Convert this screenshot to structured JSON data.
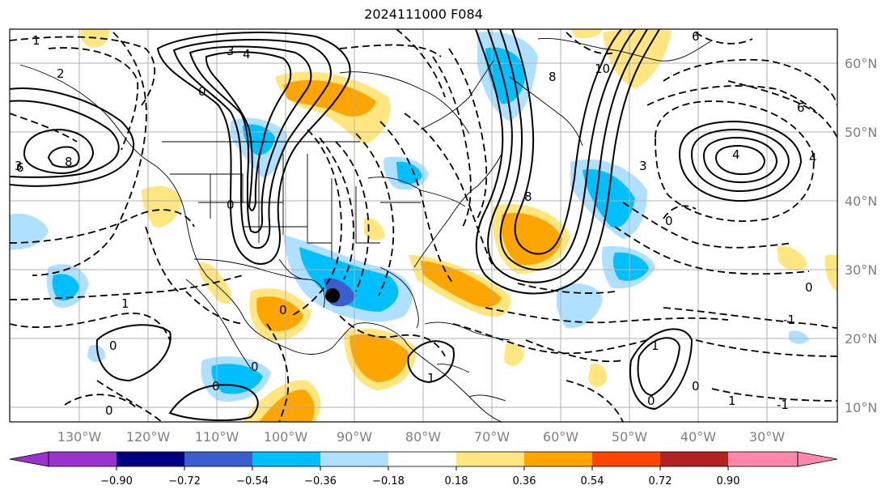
{
  "title": "2024111000 F084",
  "map": {
    "longitude_labels": [
      "130°W",
      "120°W",
      "110°W",
      "100°W",
      "90°W",
      "80°W",
      "70°W",
      "60°W",
      "50°W",
      "40°W",
      "30°W"
    ],
    "latitude_labels": [
      "60°N",
      "50°N",
      "40°N",
      "30°N",
      "20°N",
      "10°N"
    ],
    "contour_labels": [
      "2",
      "1",
      "0",
      "-1",
      "3",
      "4",
      "6",
      "8",
      "10"
    ],
    "marker": "black-dot",
    "grid": true
  },
  "colorbar": {
    "ticks": [
      "−0.90",
      "−0.72",
      "−0.54",
      "−0.36",
      "−0.18",
      "0.18",
      "0.36",
      "0.54",
      "0.72",
      "0.90"
    ],
    "colors": [
      "#9933cc",
      "#000080",
      "#3a5fcd",
      "#00bfff",
      "#b0e0ff",
      "#ffffff",
      "#ffe680",
      "#ffa500",
      "#ff4500",
      "#b22222",
      "#ff88aa"
    ]
  }
}
